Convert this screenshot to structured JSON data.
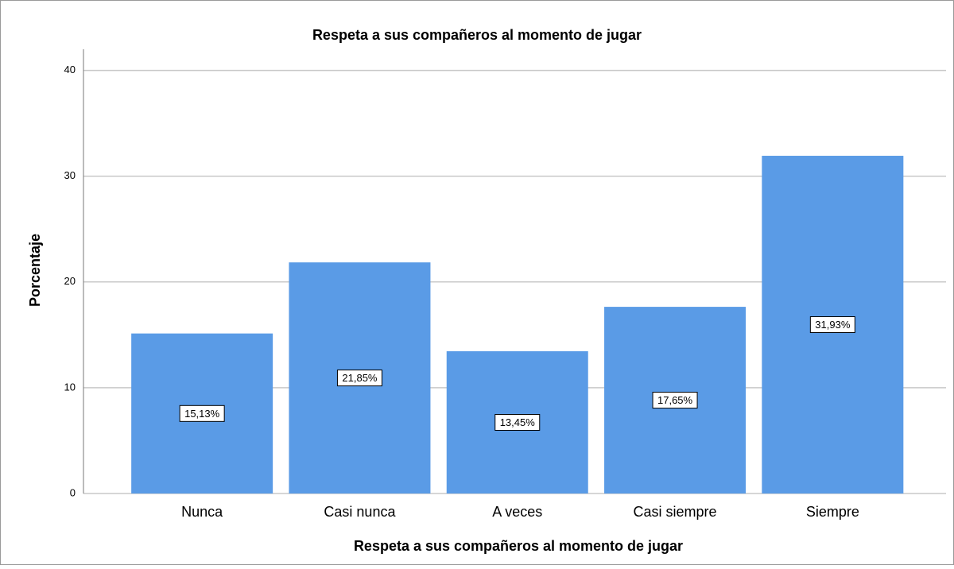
{
  "chart_data": {
    "type": "bar",
    "title": "Respeta a sus compañeros al momento de jugar",
    "x_label": "Respeta a sus compañeros al momento de jugar",
    "y_label": "Porcentaje",
    "categories": [
      "Nunca",
      "Casi nunca",
      "A veces",
      "Casi siempre",
      "Siempre"
    ],
    "values": [
      15.13,
      21.85,
      13.45,
      17.65,
      31.93
    ],
    "value_labels": [
      "15,13%",
      "21,85%",
      "13,45%",
      "17,65%",
      "31,93%"
    ],
    "color": "#5a9be6",
    "ylim": [
      0,
      42
    ],
    "yticks": [
      0,
      10,
      20,
      30,
      40
    ],
    "grid": true
  }
}
